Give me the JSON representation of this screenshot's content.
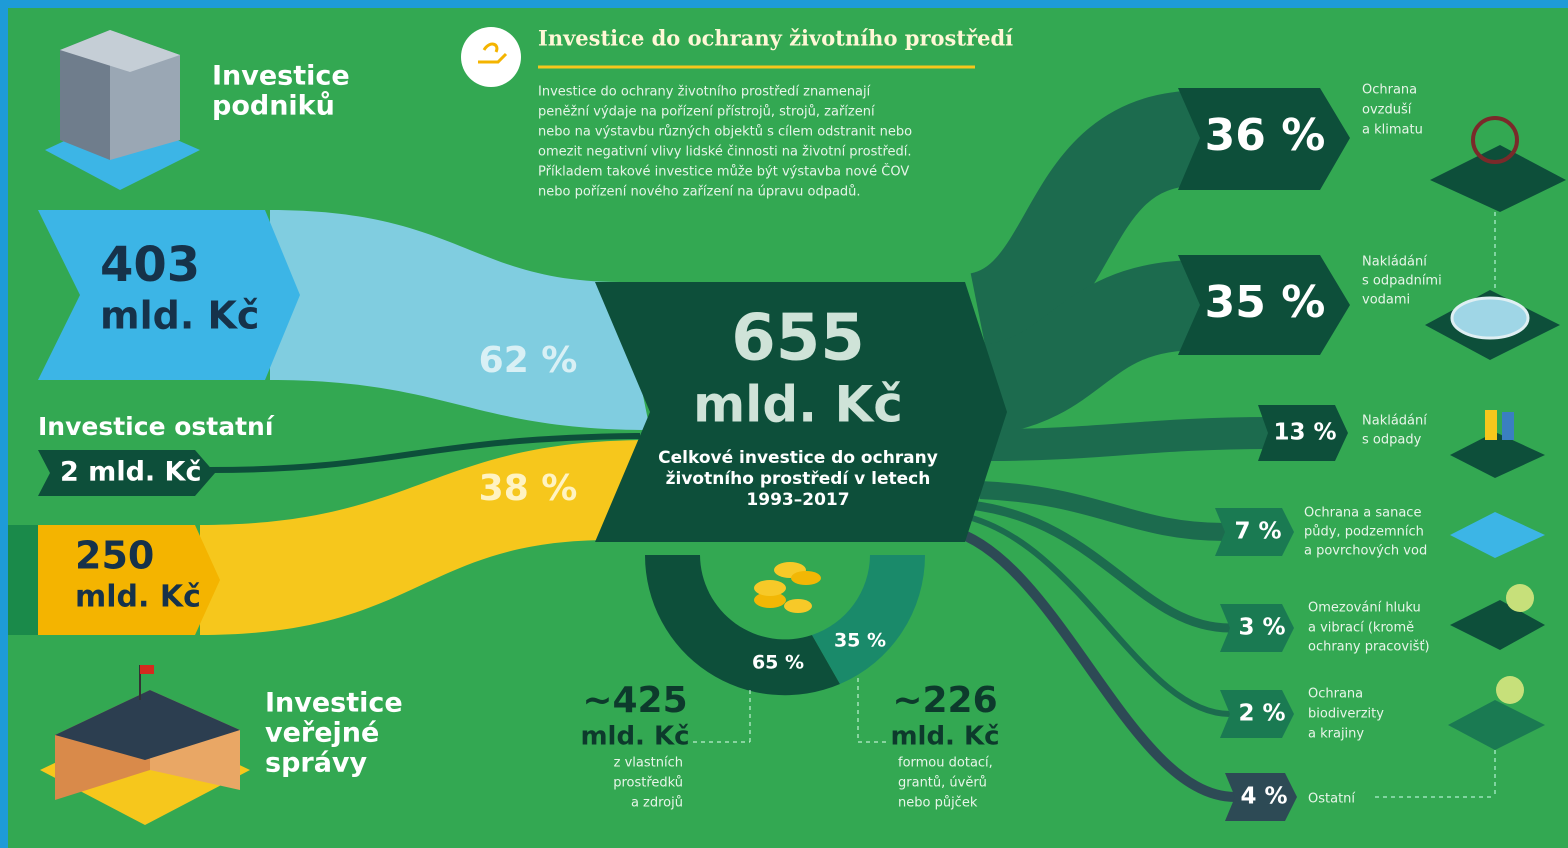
{
  "header": {
    "title": "Investice do ochrany životního prostředí",
    "description": [
      "Investice do ochrany životního prostředí znamenají",
      "peněžní výdaje na pořízení přístrojů, strojů, zařízení",
      "nebo na výstavbu různých objektů s cílem odstranit nebo",
      "omezit negativní vlivy lidské činnosti na životní prostředí.",
      "Příkladem takové investice může být výstavba nové ČOV",
      "nebo pořízení nového zařízení na úpravu odpadů."
    ]
  },
  "sources": {
    "business": {
      "label": [
        "Investice",
        "podniků"
      ],
      "amount": [
        "403",
        "mld. Kč"
      ],
      "share": "62 %"
    },
    "other": {
      "label": "Investice ostatní",
      "amount": "2 mld. Kč"
    },
    "public": {
      "label": [
        "Investice",
        "veřejné",
        "správy"
      ],
      "amount": [
        "250",
        "mld. Kč"
      ],
      "share": "38 %"
    }
  },
  "total": {
    "amount": [
      "655",
      "mld. Kč"
    ],
    "caption": [
      "Celkové investice do ochrany",
      "životního prostředí v letech",
      "1993–2017"
    ]
  },
  "funding": [
    {
      "share": "65 %",
      "amount": [
        "~425",
        "mld. Kč"
      ],
      "note": [
        "z vlastních",
        "prostředků",
        "a zdrojů"
      ]
    },
    {
      "share": "35 %",
      "amount": [
        "~226",
        "mld. Kč"
      ],
      "note": [
        "formou dotací,",
        "grantů, úvěrů",
        "nebo půjček"
      ]
    }
  ],
  "destinations": [
    {
      "share": "36 %",
      "label": [
        "Ochrana",
        "ovzduší",
        "a klimatu"
      ]
    },
    {
      "share": "35 %",
      "label": [
        "Nakládání",
        "s odpadními",
        "vodami"
      ]
    },
    {
      "share": "13 %",
      "label": [
        "Nakládání",
        "s odpady"
      ]
    },
    {
      "share": "7 %",
      "label": [
        "Ochrana a sanace",
        "půdy, podzemních",
        "a povrchových vod"
      ]
    },
    {
      "share": "3 %",
      "label": [
        "Omezování hluku",
        "a vibrací (kromě",
        "ochrany pracovišť)"
      ]
    },
    {
      "share": "2 %",
      "label": [
        "Ochrana",
        "biodiverzity",
        "a krajiny"
      ]
    },
    {
      "share": "4 %",
      "label": [
        "Ostatní"
      ]
    }
  ]
}
